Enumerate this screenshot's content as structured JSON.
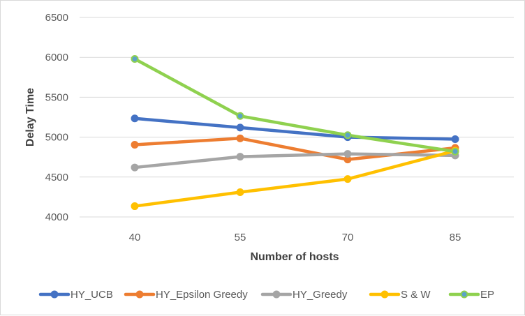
{
  "chart_data": {
    "type": "line",
    "title": "",
    "xlabel": "Number of hosts",
    "ylabel": "Delay Time",
    "categories": [
      "40",
      "55",
      "70",
      "85"
    ],
    "ylim": [
      4000,
      6500
    ],
    "yticks": [
      4000,
      4500,
      5000,
      5500,
      6000,
      6500
    ],
    "ytick_labels": [
      "4000",
      "4500",
      "5000",
      "5500",
      "6000",
      "6500"
    ],
    "grid": true,
    "legend_position": "bottom",
    "series": [
      {
        "name": "HY_UCB",
        "color": "#4472c4",
        "values": [
          5235,
          5120,
          5000,
          4975
        ]
      },
      {
        "name": "HY_Epsilon Greedy",
        "color": "#ed7d31",
        "values": [
          4905,
          4985,
          4720,
          4865
        ]
      },
      {
        "name": "HY_Greedy",
        "color": "#a5a5a5",
        "values": [
          4620,
          4755,
          4790,
          4770
        ]
      },
      {
        "name": "S & W",
        "color": "#ffc000",
        "values": [
          4135,
          4310,
          4475,
          4830
        ]
      },
      {
        "name": "EP",
        "color": "#8fd14f",
        "marker_fill": "#5ba3c7",
        "values": [
          5980,
          5265,
          5025,
          4820
        ]
      }
    ]
  }
}
